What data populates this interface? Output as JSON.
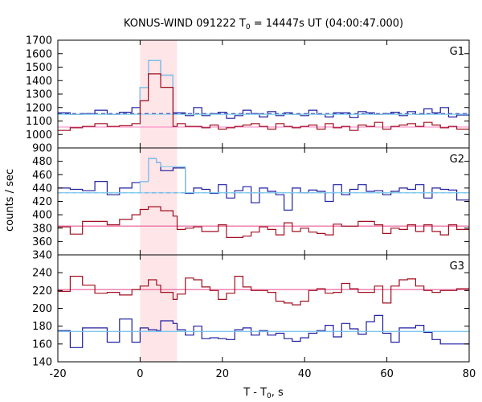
{
  "colors": {
    "blue": "#1f1fa0",
    "light_blue": "#7fcdf0",
    "red": "#a01020",
    "pink": "#ff80c0",
    "highlight": "#fde5e8"
  },
  "chart_data": [
    {
      "type": "line",
      "title": "KONUS-WIND 091222 T",
      "title_subscript": "0",
      "title_suffix": " = 14447s UT (04:00:47.000)",
      "xlabel": "T - T",
      "xlabel_subscript": "0",
      "xlabel_suffix": ", s",
      "ylabel": "counts / sec",
      "xlim": [
        -20,
        80
      ],
      "xticks": [
        -20,
        0,
        20,
        40,
        60,
        80
      ],
      "highlight_interval": [
        0,
        9
      ],
      "bin_edges": [
        -20,
        -17,
        -14,
        -11,
        -8,
        -5,
        -2,
        0,
        1,
        2,
        3,
        4,
        5,
        6,
        7,
        8,
        9,
        11,
        13,
        15,
        17,
        19,
        21,
        23,
        25,
        27,
        29,
        31,
        33,
        35,
        37,
        39,
        41,
        43,
        45,
        47,
        49,
        51,
        53,
        55,
        57,
        59,
        61,
        63,
        65,
        67,
        69,
        71,
        73,
        75,
        77,
        80
      ],
      "panels": [
        {
          "label": "G1",
          "ylim": [
            900,
            1700
          ],
          "yticks": [
            900,
            1000,
            1100,
            1200,
            1300,
            1400,
            1500,
            1600,
            1700
          ],
          "series": [
            {
              "color": "blue",
              "background": 1155,
              "values": [
                1160,
                1150,
                1155,
                1180,
                1150,
                1165,
                1200,
                1350,
                1350,
                1550,
                1550,
                1550,
                1440,
                1440,
                1440,
                1160,
                1160,
                1140,
                1200,
                1140,
                1155,
                1165,
                1120,
                1140,
                1180,
                1155,
                1130,
                1170,
                1140,
                1160,
                1150,
                1140,
                1180,
                1150,
                1130,
                1160,
                1160,
                1125,
                1170,
                1160,
                1150,
                1155,
                1165,
                1140,
                1170,
                1150,
                1190,
                1160,
                1200,
                1130,
                1145
              ]
            },
            {
              "color": "light_blue",
              "background": 1150,
              "values": [
                1150,
                1150,
                1150,
                1150,
                1150,
                1150,
                1150,
                1350,
                1350,
                1550,
                1550,
                1550,
                1440,
                1440,
                1440,
                1150,
                1150,
                1150,
                1150,
                1150,
                1150,
                1150,
                1150,
                1150,
                1150,
                1150,
                1150,
                1150,
                1150,
                1150,
                1150,
                1150,
                1150,
                1150,
                1150,
                1150,
                1150,
                1150,
                1150,
                1150,
                1150,
                1150,
                1150,
                1150,
                1150,
                1150,
                1150,
                1150,
                1150,
                1150,
                1150
              ]
            },
            {
              "color": "red",
              "background": 1055,
              "values": [
                1030,
                1050,
                1060,
                1080,
                1060,
                1065,
                1080,
                1250,
                1250,
                1450,
                1450,
                1450,
                1350,
                1350,
                1350,
                1060,
                1080,
                1060,
                1060,
                1050,
                1070,
                1040,
                1050,
                1060,
                1070,
                1080,
                1060,
                1040,
                1080,
                1060,
                1050,
                1060,
                1070,
                1040,
                1080,
                1050,
                1060,
                1030,
                1070,
                1060,
                1090,
                1040,
                1060,
                1070,
                1080,
                1060,
                1090,
                1070,
                1050,
                1060,
                1040
              ]
            },
            {
              "color": "pink",
              "background": 1055,
              "values": [
                1055,
                1055,
                1055,
                1055,
                1055,
                1055,
                1055,
                1250,
                1250,
                1450,
                1450,
                1450,
                1350,
                1350,
                1350,
                1055,
                1055,
                1055,
                1055,
                1055,
                1055,
                1055,
                1055,
                1055,
                1055,
                1055,
                1055,
                1055,
                1055,
                1055,
                1055,
                1055,
                1055,
                1055,
                1055,
                1055,
                1055,
                1055,
                1055,
                1055,
                1055,
                1055,
                1055,
                1055,
                1055,
                1055,
                1055,
                1055,
                1055,
                1055,
                1055
              ]
            }
          ]
        },
        {
          "label": "G2",
          "ylim": [
            340,
            500
          ],
          "yticks": [
            340,
            360,
            380,
            400,
            420,
            440,
            460,
            480
          ],
          "series": [
            {
              "color": "blue",
              "background": 433,
              "values": [
                440,
                438,
                436,
                450,
                430,
                440,
                448,
                450,
                450,
                484,
                484,
                478,
                466,
                466,
                466,
                470,
                470,
                432,
                440,
                438,
                432,
                445,
                425,
                436,
                442,
                418,
                440,
                435,
                430,
                407,
                440,
                433,
                437,
                435,
                420,
                445,
                430,
                438,
                445,
                435,
                436,
                430,
                435,
                440,
                438,
                445,
                425,
                440,
                438,
                437,
                422
              ]
            },
            {
              "color": "light_blue",
              "background": 433,
              "values": [
                433,
                433,
                433,
                433,
                433,
                433,
                433,
                450,
                450,
                484,
                484,
                478,
                472,
                472,
                472,
                472,
                472,
                433,
                433,
                433,
                433,
                433,
                433,
                433,
                433,
                433,
                433,
                433,
                433,
                433,
                433,
                433,
                433,
                433,
                433,
                433,
                433,
                433,
                433,
                433,
                433,
                433,
                433,
                433,
                433,
                433,
                433,
                433,
                433,
                433,
                433
              ]
            },
            {
              "color": "red",
              "background": 383,
              "values": [
                382,
                371,
                390,
                390,
                385,
                393,
                400,
                408,
                408,
                412,
                412,
                412,
                406,
                406,
                406,
                398,
                378,
                380,
                382,
                375,
                375,
                385,
                366,
                366,
                368,
                374,
                382,
                378,
                370,
                388,
                375,
                380,
                374,
                372,
                370,
                386,
                383,
                383,
                390,
                390,
                385,
                372,
                380,
                378,
                385,
                375,
                385,
                375,
                370,
                385,
                378
              ]
            },
            {
              "color": "pink",
              "background": 383,
              "values": [
                383,
                383,
                383,
                383,
                383,
                383,
                383,
                383,
                383,
                383,
                383,
                383,
                383,
                383,
                383,
                383,
                383,
                383,
                383,
                383,
                383,
                383,
                383,
                383,
                383,
                383,
                383,
                383,
                383,
                383,
                383,
                383,
                383,
                383,
                383,
                383,
                383,
                383,
                383,
                383,
                383,
                383,
                383,
                383,
                383,
                383,
                383,
                383,
                383,
                383,
                383
              ]
            }
          ]
        },
        {
          "label": "G3",
          "ylim": [
            140,
            260
          ],
          "yticks": [
            140,
            160,
            180,
            200,
            220,
            240
          ],
          "series": [
            {
              "color": "blue",
              "background": 174,
              "values": [
                175,
                156,
                178,
                178,
                162,
                188,
                162,
                178,
                178,
                176,
                176,
                175,
                186,
                186,
                186,
                183,
                176,
                170,
                180,
                166,
                167,
                166,
                165,
                176,
                178,
                170,
                175,
                170,
                172,
                166,
                163,
                167,
                172,
                175,
                181,
                168,
                183,
                177,
                171,
                185,
                192,
                172,
                162,
                178,
                178,
                181,
                173,
                165,
                160,
                160,
                160
              ]
            },
            {
              "color": "light_blue",
              "background": 174,
              "values": [
                174,
                174,
                174,
                174,
                174,
                174,
                174,
                174,
                174,
                174,
                174,
                174,
                174,
                174,
                174,
                174,
                174,
                174,
                174,
                174,
                174,
                174,
                174,
                174,
                174,
                174,
                174,
                174,
                174,
                174,
                174,
                174,
                174,
                174,
                174,
                174,
                174,
                174,
                174,
                174,
                174,
                174,
                174,
                174,
                174,
                174,
                174,
                174,
                174,
                174,
                174
              ]
            },
            {
              "color": "red",
              "background": 221,
              "values": [
                219,
                236,
                226,
                217,
                218,
                215,
                221,
                225,
                225,
                232,
                232,
                226,
                218,
                218,
                218,
                210,
                216,
                234,
                232,
                224,
                220,
                210,
                217,
                236,
                224,
                220,
                220,
                218,
                208,
                206,
                204,
                208,
                220,
                222,
                217,
                218,
                228,
                222,
                218,
                218,
                225,
                206,
                225,
                232,
                233,
                225,
                220,
                218,
                220,
                220,
                222
              ]
            },
            {
              "color": "pink",
              "background": 221,
              "values": [
                221,
                221,
                221,
                221,
                221,
                221,
                221,
                221,
                221,
                221,
                221,
                221,
                221,
                221,
                221,
                221,
                221,
                221,
                221,
                221,
                221,
                221,
                221,
                221,
                221,
                221,
                221,
                221,
                221,
                221,
                221,
                221,
                221,
                221,
                221,
                221,
                221,
                221,
                221,
                221,
                221,
                221,
                221,
                221,
                221,
                221,
                221,
                221,
                221,
                221,
                221
              ]
            }
          ]
        }
      ]
    }
  ]
}
